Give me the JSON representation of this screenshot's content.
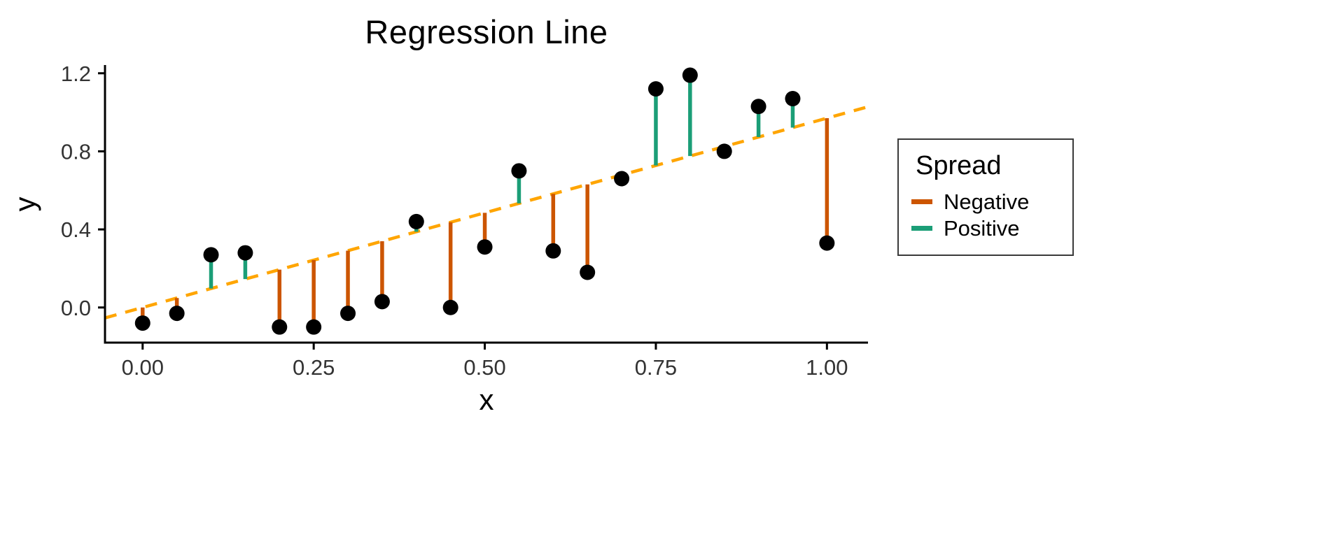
{
  "chart_data": {
    "type": "scatter",
    "title": "Regression Line",
    "xlabel": "x",
    "ylabel": "y",
    "xlim": [
      -0.055,
      1.06
    ],
    "ylim": [
      -0.18,
      1.235
    ],
    "grid": false,
    "x_ticks": {
      "values": [
        0.0,
        0.25,
        0.5,
        0.75,
        1.0
      ],
      "labels": [
        "0.00",
        "0.25",
        "0.50",
        "0.75",
        "1.00"
      ]
    },
    "y_ticks": {
      "values": [
        0.0,
        0.4,
        0.8,
        1.2
      ],
      "labels": [
        "0.0",
        "0.4",
        "0.8",
        "1.2"
      ]
    },
    "points": [
      {
        "x": 0.0,
        "y": -0.08
      },
      {
        "x": 0.05,
        "y": -0.03
      },
      {
        "x": 0.1,
        "y": 0.27
      },
      {
        "x": 0.15,
        "y": 0.28
      },
      {
        "x": 0.2,
        "y": -0.1
      },
      {
        "x": 0.25,
        "y": -0.1
      },
      {
        "x": 0.3,
        "y": -0.03
      },
      {
        "x": 0.35,
        "y": 0.03
      },
      {
        "x": 0.4,
        "y": 0.44
      },
      {
        "x": 0.45,
        "y": 0.0
      },
      {
        "x": 0.5,
        "y": 0.31
      },
      {
        "x": 0.55,
        "y": 0.7
      },
      {
        "x": 0.6,
        "y": 0.29
      },
      {
        "x": 0.65,
        "y": 0.18
      },
      {
        "x": 0.7,
        "y": 0.66
      },
      {
        "x": 0.75,
        "y": 1.12
      },
      {
        "x": 0.8,
        "y": 1.19
      },
      {
        "x": 0.85,
        "y": 0.8
      },
      {
        "x": 0.9,
        "y": 1.03
      },
      {
        "x": 0.95,
        "y": 1.07
      },
      {
        "x": 1.0,
        "y": 0.33
      }
    ],
    "regression_line": {
      "intercept": 0.0,
      "slope": 0.97,
      "x_start": -0.055,
      "x_end": 1.06,
      "style": "dashed",
      "color": "#FFA500"
    },
    "residual_colors": {
      "negative": "#CC5500",
      "positive": "#1B9E77"
    },
    "point_color": "#000000",
    "axis_color": "#000000",
    "tick_label_color": "#333333",
    "legend": {
      "title": "Spread",
      "position": "right",
      "items": [
        {
          "label": "Negative",
          "color": "#CC5500"
        },
        {
          "label": "Positive",
          "color": "#1B9E77"
        }
      ]
    }
  }
}
